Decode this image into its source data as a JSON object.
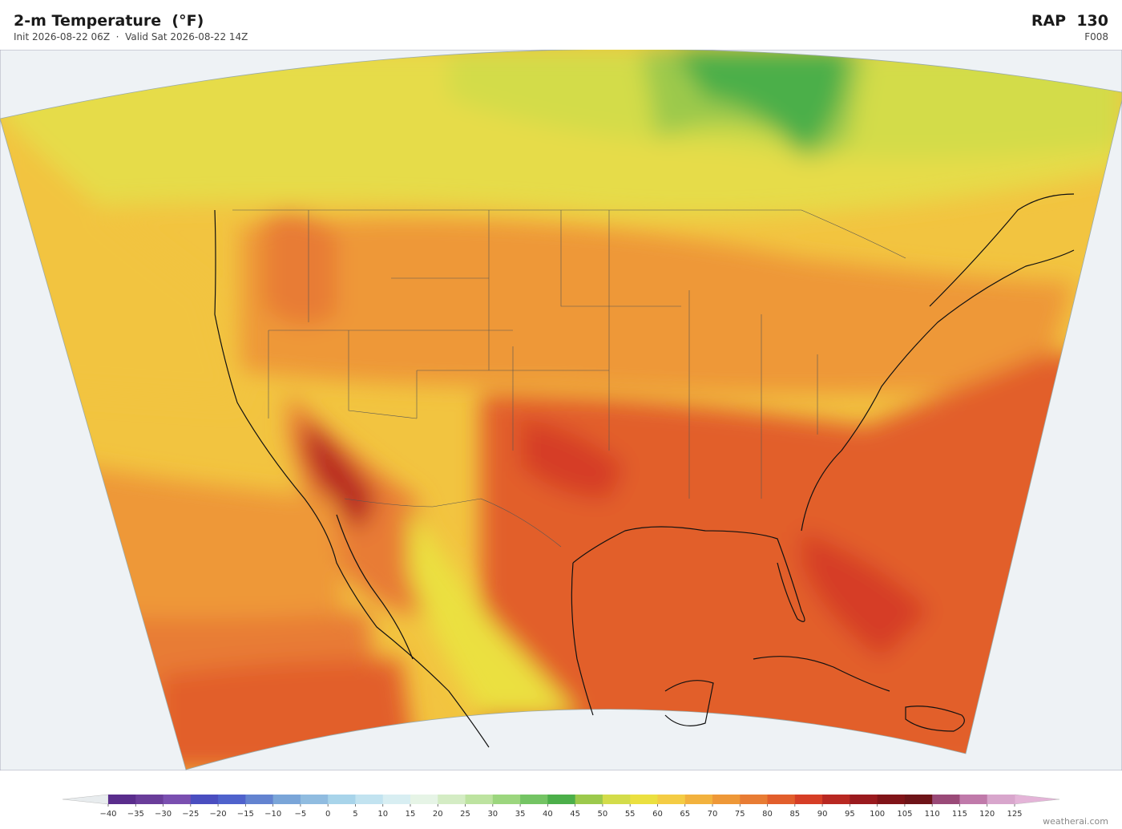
{
  "header": {
    "title": "2-m Temperature  (°F)",
    "subtitle": "Init 2026-08-22 06Z  ·  Valid Sat 2026-08-22 14Z",
    "model": "RAP  130",
    "forecast_hour": "F008"
  },
  "colorbar": {
    "ticks": [
      {
        "value": -40,
        "label": "−40"
      },
      {
        "value": -35,
        "label": "−35"
      },
      {
        "value": -30,
        "label": "−30"
      },
      {
        "value": -25,
        "label": "−25"
      },
      {
        "value": -20,
        "label": "−20"
      },
      {
        "value": -15,
        "label": "−15"
      },
      {
        "value": -10,
        "label": "−10"
      },
      {
        "value": -5,
        "label": "−5"
      },
      0,
      5,
      10,
      15,
      20,
      25,
      30,
      35,
      40,
      45,
      50,
      55,
      60,
      65,
      70,
      75,
      80,
      85,
      90,
      95,
      100,
      105,
      110,
      115,
      120,
      125
    ],
    "colors": [
      "#5a2d8c",
      "#6a3d9a",
      "#7a4fb0",
      "#4a4ec0",
      "#4f62cc",
      "#6383d0",
      "#7aa5d8",
      "#90bce0",
      "#a8d4ea",
      "#c2e3f0",
      "#d8eef2",
      "#e6f4e6",
      "#d4ecc4",
      "#bde3a0",
      "#9cd67e",
      "#74c464",
      "#4caf4a",
      "#9cc94c",
      "#d3dc4a",
      "#ebe040",
      "#f4cc44",
      "#f2b23e",
      "#ee9838",
      "#e87c34",
      "#e25e2c",
      "#d63e26",
      "#b82822",
      "#9a1a1e",
      "#801418",
      "#6e1418",
      "#9a4a78",
      "#c07aaa",
      "#d8a6cc"
    ]
  },
  "credit": "weatherai.com"
}
